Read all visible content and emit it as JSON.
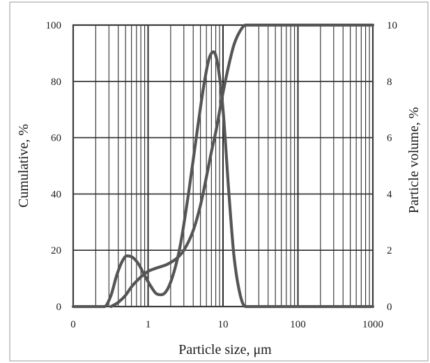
{
  "chart_data": {
    "type": "line",
    "x_scale": "log",
    "grid": true,
    "xlabel": "Particle size, μm",
    "ylabel_left": "Cumulative, %",
    "ylabel_right": "Particle volume, %",
    "xlim": [
      0.1,
      1000
    ],
    "ylim_left": [
      0,
      100
    ],
    "ylim_right": [
      0,
      10
    ],
    "x_tick_values": [
      0.1,
      1,
      10,
      100,
      1000
    ],
    "x_tick_labels": [
      "0",
      "1",
      "10",
      "100",
      "1000"
    ],
    "y_left_ticks": [
      "0",
      "20",
      "40",
      "60",
      "80",
      "100"
    ],
    "y_right_ticks": [
      "0",
      "2",
      "4",
      "6",
      "8",
      "10"
    ],
    "series": [
      {
        "axis": "left",
        "points": [
          {
            "x": 0.32,
            "y": 0
          },
          {
            "x": 0.4,
            "y": 1.5
          },
          {
            "x": 0.5,
            "y": 4
          },
          {
            "x": 0.6,
            "y": 7
          },
          {
            "x": 0.8,
            "y": 10.5
          },
          {
            "x": 1.0,
            "y": 12.5
          },
          {
            "x": 1.3,
            "y": 13.7
          },
          {
            "x": 1.8,
            "y": 15
          },
          {
            "x": 2.5,
            "y": 17.5
          },
          {
            "x": 3.0,
            "y": 20
          },
          {
            "x": 4.0,
            "y": 27
          },
          {
            "x": 5.0,
            "y": 36
          },
          {
            "x": 6.0,
            "y": 46
          },
          {
            "x": 7.0,
            "y": 55
          },
          {
            "x": 8.0,
            "y": 62
          },
          {
            "x": 10.0,
            "y": 76
          },
          {
            "x": 12.0,
            "y": 86
          },
          {
            "x": 14.0,
            "y": 93
          },
          {
            "x": 17.0,
            "y": 98
          },
          {
            "x": 20.0,
            "y": 100
          },
          {
            "x": 1000,
            "y": 100
          }
        ]
      },
      {
        "axis": "right",
        "points": [
          {
            "x": 0.1,
            "y": 0
          },
          {
            "x": 0.26,
            "y": 0
          },
          {
            "x": 0.32,
            "y": 0.4
          },
          {
            "x": 0.38,
            "y": 1.1
          },
          {
            "x": 0.45,
            "y": 1.6
          },
          {
            "x": 0.52,
            "y": 1.8
          },
          {
            "x": 0.62,
            "y": 1.75
          },
          {
            "x": 0.75,
            "y": 1.5
          },
          {
            "x": 0.9,
            "y": 1.1
          },
          {
            "x": 1.1,
            "y": 0.7
          },
          {
            "x": 1.3,
            "y": 0.45
          },
          {
            "x": 1.5,
            "y": 0.42
          },
          {
            "x": 1.8,
            "y": 0.6
          },
          {
            "x": 2.2,
            "y": 1.2
          },
          {
            "x": 2.7,
            "y": 2.2
          },
          {
            "x": 3.5,
            "y": 4.1
          },
          {
            "x": 4.5,
            "y": 6.2
          },
          {
            "x": 5.5,
            "y": 7.8
          },
          {
            "x": 6.5,
            "y": 8.8
          },
          {
            "x": 7.5,
            "y": 9.05
          },
          {
            "x": 8.5,
            "y": 8.6
          },
          {
            "x": 10.0,
            "y": 7.0
          },
          {
            "x": 12.0,
            "y": 4.0
          },
          {
            "x": 14.0,
            "y": 1.8
          },
          {
            "x": 17.0,
            "y": 0.4
          },
          {
            "x": 20.0,
            "y": 0
          },
          {
            "x": 1000,
            "y": 0
          }
        ]
      }
    ]
  },
  "colors": {
    "line": "#555555",
    "grid": "#2b2b2b",
    "frame": "#3a3a3a"
  }
}
